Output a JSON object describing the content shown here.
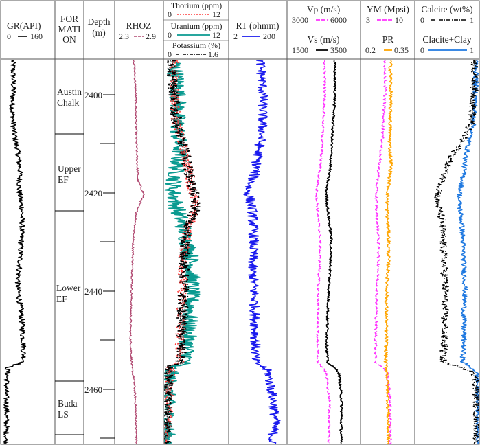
{
  "chart_data": {
    "type": "line",
    "tracks": {
      "gr": {
        "title": "GR(API)",
        "min": "0",
        "max": "160",
        "color": "#000000"
      },
      "formation": {
        "title_lines": [
          "FOR",
          "MATI",
          "ON"
        ]
      },
      "depth": {
        "title_lines": [
          "Depth",
          "(m)"
        ]
      },
      "rhoz": {
        "title": "RHOZ",
        "min": "2.3",
        "max": "2.9",
        "color": "#b04870"
      },
      "thorium": {
        "title": "Thorium (ppm)",
        "min": "0",
        "max": "12",
        "color": "#ff3b3b"
      },
      "uranium": {
        "title": "Uranium (ppm)",
        "min": "0",
        "max": "12",
        "color": "#0a9a90"
      },
      "potassium": {
        "title": "Potassium (%)",
        "min": "0",
        "max": "1.6",
        "color": "#000000"
      },
      "rt": {
        "title": "RT (ohmm)",
        "min": "2",
        "max": "200",
        "color": "#1a1aee"
      },
      "vp": {
        "title": "Vp (m/s)",
        "min": "3000",
        "max": "6000",
        "color": "#ff33ff"
      },
      "vs": {
        "title": "Vs (m/s)",
        "min": "1500",
        "max": "3500",
        "color": "#000000"
      },
      "ym": {
        "title": "YM (Mpsi)",
        "min": "3",
        "max": "10",
        "color": "#ff33ff"
      },
      "pr": {
        "title": "PR",
        "min": "0.2",
        "max": "0.35",
        "color": "#ffa500"
      },
      "calcite": {
        "title": "Calcite (wt%)",
        "min": "0",
        "max": "1",
        "color": "#000000"
      },
      "calcite_clay": {
        "title": "Clacite+Clay",
        "min": "0",
        "max": "1",
        "color": "#1e78e0"
      }
    },
    "depth_range": [
      2393,
      2473
    ],
    "depth_labels": [
      "2400",
      "2420",
      "2440",
      "2460"
    ],
    "formations": [
      {
        "lines": [
          "Austin",
          "Chalk"
        ],
        "top": 2393,
        "base": 2409
      },
      {
        "lines": [
          "Upper",
          "EF"
        ],
        "top": 2409,
        "base": 2423
      },
      {
        "lines": [
          "Lower",
          "EF"
        ],
        "top": 2423,
        "base": 2457
      },
      {
        "lines": [
          "Buda",
          "LS"
        ],
        "top": 2457,
        "base": 2473
      }
    ],
    "profiles": {
      "gr": [
        [
          2393,
          28
        ],
        [
          2399,
          30
        ],
        [
          2403,
          26
        ],
        [
          2408,
          32
        ],
        [
          2412,
          44
        ],
        [
          2416,
          52
        ],
        [
          2420,
          48
        ],
        [
          2424,
          58
        ],
        [
          2430,
          56
        ],
        [
          2436,
          50
        ],
        [
          2440,
          44
        ],
        [
          2446,
          56
        ],
        [
          2452,
          62
        ],
        [
          2456,
          64
        ],
        [
          2457,
          12
        ],
        [
          2462,
          6
        ],
        [
          2468,
          8
        ],
        [
          2473,
          6
        ]
      ],
      "rhoz": [
        [
          2393,
          2.53
        ],
        [
          2400,
          2.55
        ],
        [
          2410,
          2.56
        ],
        [
          2418,
          2.58
        ],
        [
          2421,
          2.66
        ],
        [
          2424,
          2.57
        ],
        [
          2430,
          2.52
        ],
        [
          2440,
          2.5
        ],
        [
          2450,
          2.48
        ],
        [
          2457,
          2.5
        ],
        [
          2460,
          2.53
        ],
        [
          2465,
          2.55
        ],
        [
          2473,
          2.56
        ]
      ],
      "thorium": [
        [
          2393,
          1.6
        ],
        [
          2400,
          2.0
        ],
        [
          2406,
          2.2
        ],
        [
          2412,
          3.8
        ],
        [
          2416,
          4.6
        ],
        [
          2420,
          5.2
        ],
        [
          2424,
          5.8
        ],
        [
          2428,
          4.4
        ],
        [
          2434,
          3.6
        ],
        [
          2440,
          3.4
        ],
        [
          2446,
          3.2
        ],
        [
          2452,
          3.0
        ],
        [
          2456,
          3.0
        ],
        [
          2457,
          1.0
        ],
        [
          2464,
          0.6
        ],
        [
          2473,
          0.5
        ]
      ],
      "uranium": [
        [
          2393,
          1.8
        ],
        [
          2400,
          2.6
        ],
        [
          2406,
          2.4
        ],
        [
          2412,
          2.8
        ],
        [
          2416,
          2.2
        ],
        [
          2420,
          1.5
        ],
        [
          2424,
          2.4
        ],
        [
          2428,
          3.6
        ],
        [
          2434,
          5.0
        ],
        [
          2440,
          5.2
        ],
        [
          2446,
          4.8
        ],
        [
          2452,
          4.4
        ],
        [
          2456,
          4.2
        ],
        [
          2457,
          1.2
        ],
        [
          2462,
          0.5
        ],
        [
          2473,
          0.4
        ]
      ],
      "potassium": [
        [
          2393,
          0.18
        ],
        [
          2400,
          0.22
        ],
        [
          2406,
          0.3
        ],
        [
          2412,
          0.5
        ],
        [
          2416,
          0.62
        ],
        [
          2420,
          0.72
        ],
        [
          2424,
          0.8
        ],
        [
          2428,
          0.55
        ],
        [
          2434,
          0.5
        ],
        [
          2440,
          0.48
        ],
        [
          2446,
          0.45
        ],
        [
          2452,
          0.42
        ],
        [
          2456,
          0.4
        ],
        [
          2457,
          0.08
        ],
        [
          2464,
          0.05
        ],
        [
          2473,
          0.05
        ]
      ],
      "rt": [
        [
          2393,
          24
        ],
        [
          2400,
          30
        ],
        [
          2408,
          28
        ],
        [
          2412,
          20
        ],
        [
          2416,
          16
        ],
        [
          2420,
          8
        ],
        [
          2424,
          12
        ],
        [
          2430,
          14
        ],
        [
          2436,
          12
        ],
        [
          2440,
          14
        ],
        [
          2446,
          15
        ],
        [
          2452,
          16
        ],
        [
          2456,
          15
        ],
        [
          2458,
          45
        ],
        [
          2464,
          70
        ],
        [
          2468,
          85
        ],
        [
          2473,
          60
        ]
      ],
      "vp": [
        [
          2393,
          4520
        ],
        [
          2400,
          4530
        ],
        [
          2410,
          4420
        ],
        [
          2415,
          4340
        ],
        [
          2420,
          4180
        ],
        [
          2424,
          4210
        ],
        [
          2430,
          4330
        ],
        [
          2436,
          4300
        ],
        [
          2440,
          4250
        ],
        [
          2446,
          4240
        ],
        [
          2452,
          4220
        ],
        [
          2456,
          4230
        ],
        [
          2458,
          4580
        ],
        [
          2464,
          4720
        ],
        [
          2473,
          4700
        ]
      ],
      "vs": [
        [
          2393,
          2800
        ],
        [
          2400,
          2810
        ],
        [
          2410,
          2720
        ],
        [
          2415,
          2680
        ],
        [
          2420,
          2560
        ],
        [
          2424,
          2600
        ],
        [
          2430,
          2700
        ],
        [
          2436,
          2680
        ],
        [
          2440,
          2640
        ],
        [
          2446,
          2600
        ],
        [
          2452,
          2580
        ],
        [
          2456,
          2590
        ],
        [
          2458,
          2920
        ],
        [
          2464,
          3000
        ],
        [
          2473,
          2980
        ]
      ],
      "ym": [
        [
          2393,
          6.1
        ],
        [
          2400,
          6.1
        ],
        [
          2410,
          5.7
        ],
        [
          2415,
          5.3
        ],
        [
          2420,
          4.9
        ],
        [
          2424,
          4.9
        ],
        [
          2430,
          5.2
        ],
        [
          2436,
          5.2
        ],
        [
          2440,
          5.0
        ],
        [
          2446,
          4.9
        ],
        [
          2452,
          4.8
        ],
        [
          2456,
          4.8
        ],
        [
          2458,
          6.4
        ],
        [
          2464,
          6.8
        ],
        [
          2473,
          6.8
        ]
      ],
      "pr": [
        [
          2393,
          0.282
        ],
        [
          2400,
          0.283
        ],
        [
          2410,
          0.28
        ],
        [
          2415,
          0.284
        ],
        [
          2420,
          0.275
        ],
        [
          2424,
          0.272
        ],
        [
          2430,
          0.277
        ],
        [
          2436,
          0.276
        ],
        [
          2440,
          0.272
        ],
        [
          2446,
          0.27
        ],
        [
          2452,
          0.27
        ],
        [
          2456,
          0.268
        ],
        [
          2458,
          0.272
        ],
        [
          2464,
          0.275
        ],
        [
          2473,
          0.276
        ]
      ],
      "calcite": [
        [
          2393,
          0.94
        ],
        [
          2400,
          0.93
        ],
        [
          2406,
          0.88
        ],
        [
          2410,
          0.72
        ],
        [
          2414,
          0.52
        ],
        [
          2418,
          0.42
        ],
        [
          2422,
          0.32
        ],
        [
          2426,
          0.4
        ],
        [
          2430,
          0.42
        ],
        [
          2436,
          0.44
        ],
        [
          2440,
          0.46
        ],
        [
          2446,
          0.45
        ],
        [
          2452,
          0.44
        ],
        [
          2456,
          0.42
        ],
        [
          2458,
          0.94
        ],
        [
          2464,
          0.97
        ],
        [
          2473,
          0.97
        ]
      ],
      "calcite_clay": [
        [
          2393,
          0.96
        ],
        [
          2400,
          0.95
        ],
        [
          2406,
          0.92
        ],
        [
          2410,
          0.84
        ],
        [
          2414,
          0.78
        ],
        [
          2418,
          0.74
        ],
        [
          2422,
          0.68
        ],
        [
          2426,
          0.72
        ],
        [
          2430,
          0.74
        ],
        [
          2436,
          0.76
        ],
        [
          2440,
          0.78
        ],
        [
          2446,
          0.76
        ],
        [
          2452,
          0.76
        ],
        [
          2456,
          0.74
        ],
        [
          2458,
          0.97
        ],
        [
          2464,
          0.99
        ],
        [
          2473,
          0.99
        ]
      ]
    }
  }
}
